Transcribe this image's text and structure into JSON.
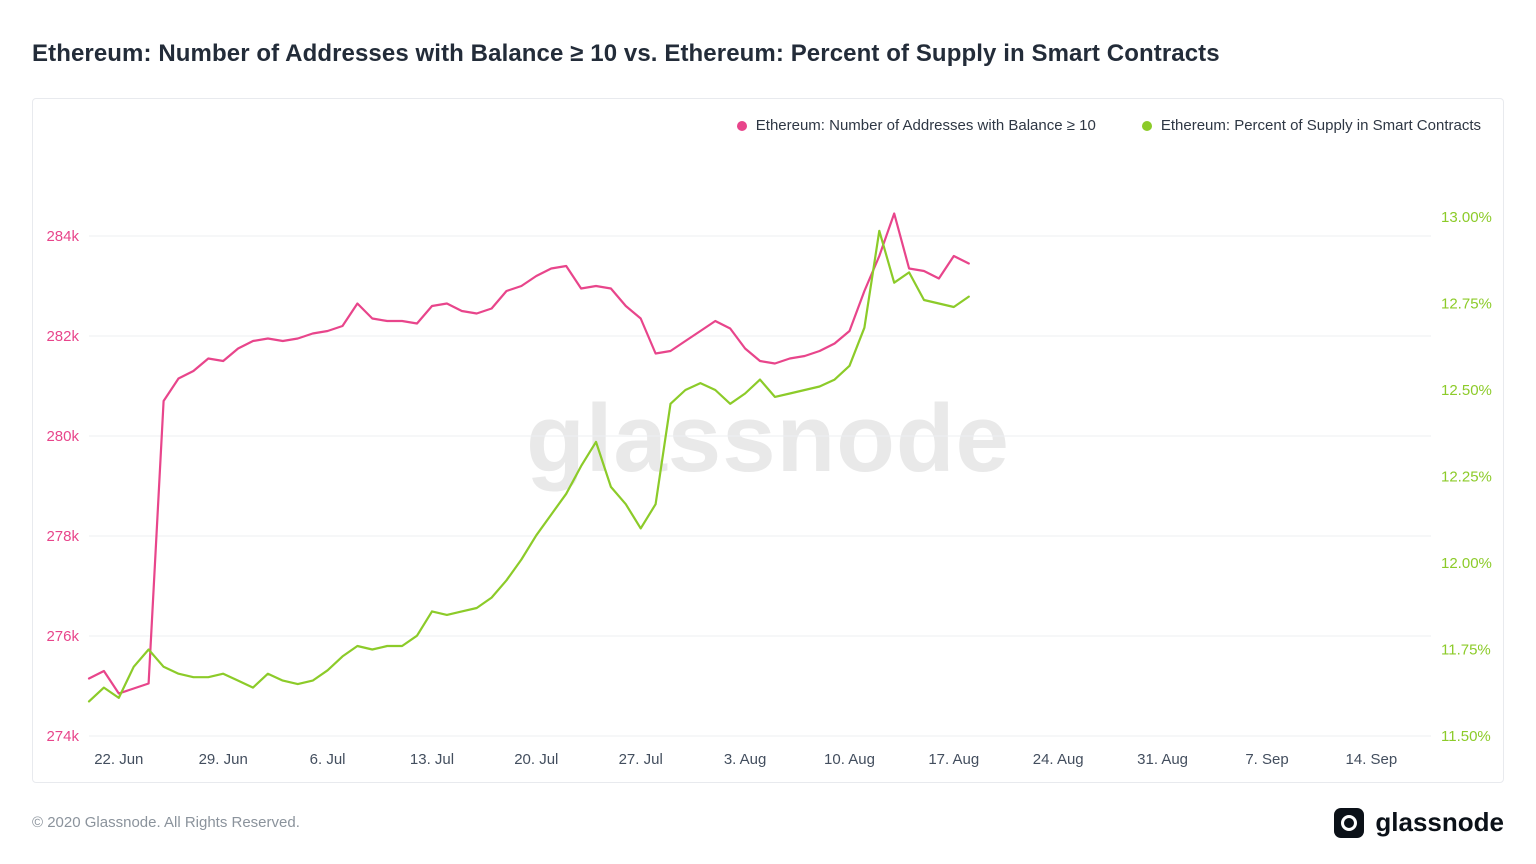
{
  "header": {
    "title": "Ethereum: Number of Addresses with Balance ≥ 10 vs. Ethereum: Percent of Supply in Smart Contracts"
  },
  "legend": {
    "items": [
      {
        "label": "Ethereum: Number of Addresses with Balance ≥ 10",
        "color": "#e8458b"
      },
      {
        "label": "Ethereum: Percent of Supply in Smart Contracts",
        "color": "#8ccb29"
      }
    ]
  },
  "watermark": "glassnode",
  "footer": {
    "copyright": "© 2020 Glassnode. All Rights Reserved.",
    "brand": "glassnode"
  },
  "chart_data": {
    "type": "line",
    "title": "Ethereum: Number of Addresses with Balance ≥ 10 vs. Ethereum: Percent of Supply in Smart Contracts",
    "x": [
      "20 Jun",
      "21 Jun",
      "22 Jun",
      "23 Jun",
      "24 Jun",
      "25 Jun",
      "26 Jun",
      "27 Jun",
      "28 Jun",
      "29 Jun",
      "30 Jun",
      "1 Jul",
      "2 Jul",
      "3 Jul",
      "4 Jul",
      "5 Jul",
      "6 Jul",
      "7 Jul",
      "8 Jul",
      "9 Jul",
      "10 Jul",
      "11 Jul",
      "12 Jul",
      "13 Jul",
      "14 Jul",
      "15 Jul",
      "16 Jul",
      "17 Jul",
      "18 Jul",
      "19 Jul",
      "20 Jul",
      "21 Jul",
      "22 Jul",
      "23 Jul",
      "24 Jul",
      "25 Jul",
      "26 Jul",
      "27 Jul",
      "28 Jul",
      "29 Jul",
      "30 Jul",
      "31 Jul",
      "1 Aug",
      "2 Aug",
      "3 Aug",
      "4 Aug",
      "5 Aug",
      "6 Aug",
      "7 Aug",
      "8 Aug",
      "9 Aug",
      "10 Aug",
      "11 Aug",
      "12 Aug",
      "13 Aug",
      "14 Aug",
      "15 Aug",
      "16 Aug",
      "17 Aug",
      "18 Aug"
    ],
    "x_tick_labels": [
      "22. Jun",
      "29. Jun",
      "6. Jul",
      "13. Jul",
      "20. Jul",
      "27. Jul",
      "3. Aug",
      "10. Aug",
      "17. Aug",
      "24. Aug",
      "31. Aug",
      "7. Sep",
      "14. Sep"
    ],
    "series": [
      {
        "name": "Ethereum: Number of Addresses with Balance ≥ 10",
        "axis": "left",
        "unit": "thousand addresses",
        "color": "#e8458b",
        "values": [
          275.15,
          275.3,
          274.85,
          274.95,
          275.05,
          280.7,
          281.15,
          281.3,
          281.55,
          281.5,
          281.75,
          281.9,
          281.95,
          281.9,
          281.95,
          282.05,
          282.1,
          282.2,
          282.65,
          282.35,
          282.3,
          282.3,
          282.25,
          282.6,
          282.65,
          282.5,
          282.45,
          282.55,
          282.9,
          283.0,
          283.2,
          283.35,
          283.4,
          282.95,
          283.0,
          282.95,
          282.6,
          282.35,
          281.65,
          281.7,
          281.9,
          282.1,
          282.3,
          282.15,
          281.75,
          281.5,
          281.45,
          281.55,
          281.6,
          281.7,
          281.85,
          282.1,
          282.9,
          283.6,
          284.45,
          283.35,
          283.3,
          283.15,
          283.6,
          283.45
        ]
      },
      {
        "name": "Ethereum: Percent of Supply in Smart Contracts",
        "axis": "right",
        "unit": "%",
        "color": "#8ccb29",
        "values": [
          11.6,
          11.64,
          11.61,
          11.7,
          11.75,
          11.7,
          11.68,
          11.67,
          11.67,
          11.68,
          11.66,
          11.64,
          11.68,
          11.66,
          11.65,
          11.66,
          11.69,
          11.73,
          11.76,
          11.75,
          11.76,
          11.76,
          11.79,
          11.86,
          11.85,
          11.86,
          11.87,
          11.9,
          11.95,
          12.01,
          12.08,
          12.14,
          12.2,
          12.28,
          12.35,
          12.22,
          12.17,
          12.1,
          12.17,
          12.46,
          12.5,
          12.52,
          12.5,
          12.46,
          12.49,
          12.53,
          12.48,
          12.49,
          12.5,
          12.51,
          12.53,
          12.57,
          12.68,
          12.96,
          12.81,
          12.84,
          12.76,
          12.75,
          12.74,
          12.77
        ]
      }
    ],
    "left_axis": {
      "label": "Number of Addresses with Balance ≥ 10",
      "tick_labels": [
        "274k",
        "276k",
        "278k",
        "280k",
        "282k",
        "284k"
      ],
      "tick_values": [
        274,
        276,
        278,
        280,
        282,
        284
      ],
      "min": 274,
      "max": 284,
      "color": "#e8458b"
    },
    "right_axis": {
      "label": "Percent of Supply in Smart Contracts",
      "tick_labels": [
        "11.50%",
        "11.75%",
        "12.00%",
        "12.25%",
        "12.50%",
        "12.75%",
        "13.00%"
      ],
      "tick_values": [
        11.5,
        11.75,
        12.0,
        12.25,
        12.5,
        12.75,
        13.0
      ],
      "min": 11.5,
      "max": 13.0,
      "color": "#8ccb29"
    },
    "grid": "horizontal",
    "legend_position": "top-right"
  }
}
